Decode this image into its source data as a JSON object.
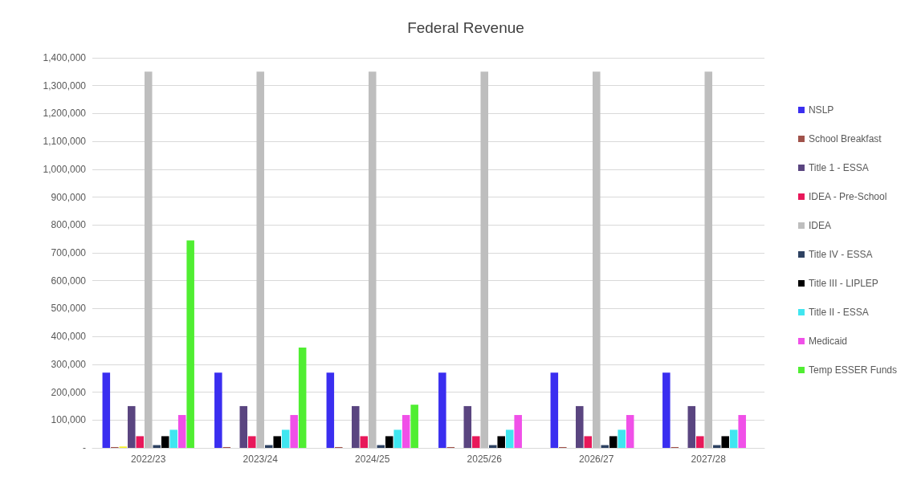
{
  "chart_data": {
    "type": "bar",
    "title": "Federal Revenue",
    "categories": [
      "2022/23",
      "2023/24",
      "2024/25",
      "2025/26",
      "2026/27",
      "2027/28"
    ],
    "series": [
      {
        "name": "NSLP",
        "color": "#3a2ef0",
        "values": [
          270000,
          270000,
          270000,
          270000,
          270000,
          270000
        ]
      },
      {
        "name": "School Breakfast",
        "color": "#a0524a",
        "values": [
          3000,
          3000,
          3000,
          3000,
          3000,
          3000
        ]
      },
      {
        "color": "#f5f02a",
        "values": [
          5000,
          null,
          null,
          null,
          null,
          null
        ]
      },
      {
        "name": "Title 1 - ESSA",
        "color": "#5a4580",
        "values": [
          150000,
          150000,
          150000,
          150000,
          150000,
          150000
        ]
      },
      {
        "name": "IDEA - Pre-School",
        "color": "#e8185a",
        "values": [
          42000,
          42000,
          42000,
          42000,
          42000,
          42000
        ]
      },
      {
        "name": "IDEA",
        "color": "#bebebe",
        "values": [
          1350000,
          1350000,
          1350000,
          1350000,
          1350000,
          1350000
        ]
      },
      {
        "name": "Title IV - ESSA",
        "color": "#2e4262",
        "values": [
          10000,
          10000,
          10000,
          10000,
          10000,
          10000
        ]
      },
      {
        "name": "Title III - LIPLEP",
        "color": "#000000",
        "values": [
          42000,
          42000,
          42000,
          42000,
          42000,
          42000
        ]
      },
      {
        "name": "Title II - ESSA",
        "color": "#40e6f0",
        "values": [
          65000,
          65000,
          65000,
          65000,
          65000,
          65000
        ]
      },
      {
        "name": "Medicaid",
        "color": "#f050e8",
        "values": [
          118000,
          118000,
          118000,
          118000,
          118000,
          118000
        ]
      },
      {
        "name": "Temp ESSER Funds",
        "color": "#50ee32",
        "values": [
          745000,
          360000,
          155000,
          null,
          null,
          null
        ]
      }
    ],
    "ylim": [
      0,
      1400000
    ],
    "yticks": [
      {
        "value": 0,
        "label": "-"
      },
      {
        "value": 100000,
        "label": "100,000"
      },
      {
        "value": 200000,
        "label": "200,000"
      },
      {
        "value": 300000,
        "label": "300,000"
      },
      {
        "value": 400000,
        "label": "400,000"
      },
      {
        "value": 500000,
        "label": "500,000"
      },
      {
        "value": 600000,
        "label": "600,000"
      },
      {
        "value": 700000,
        "label": "700,000"
      },
      {
        "value": 800000,
        "label": "800,000"
      },
      {
        "value": 900000,
        "label": "900,000"
      },
      {
        "value": 1000000,
        "label": "1,000,000"
      },
      {
        "value": 1100000,
        "label": "1,100,000"
      },
      {
        "value": 1200000,
        "label": "1,200,000"
      },
      {
        "value": 1300000,
        "label": "1,300,000"
      },
      {
        "value": 1400000,
        "label": "1,400,000"
      }
    ],
    "grid": "y",
    "legend": "right"
  }
}
